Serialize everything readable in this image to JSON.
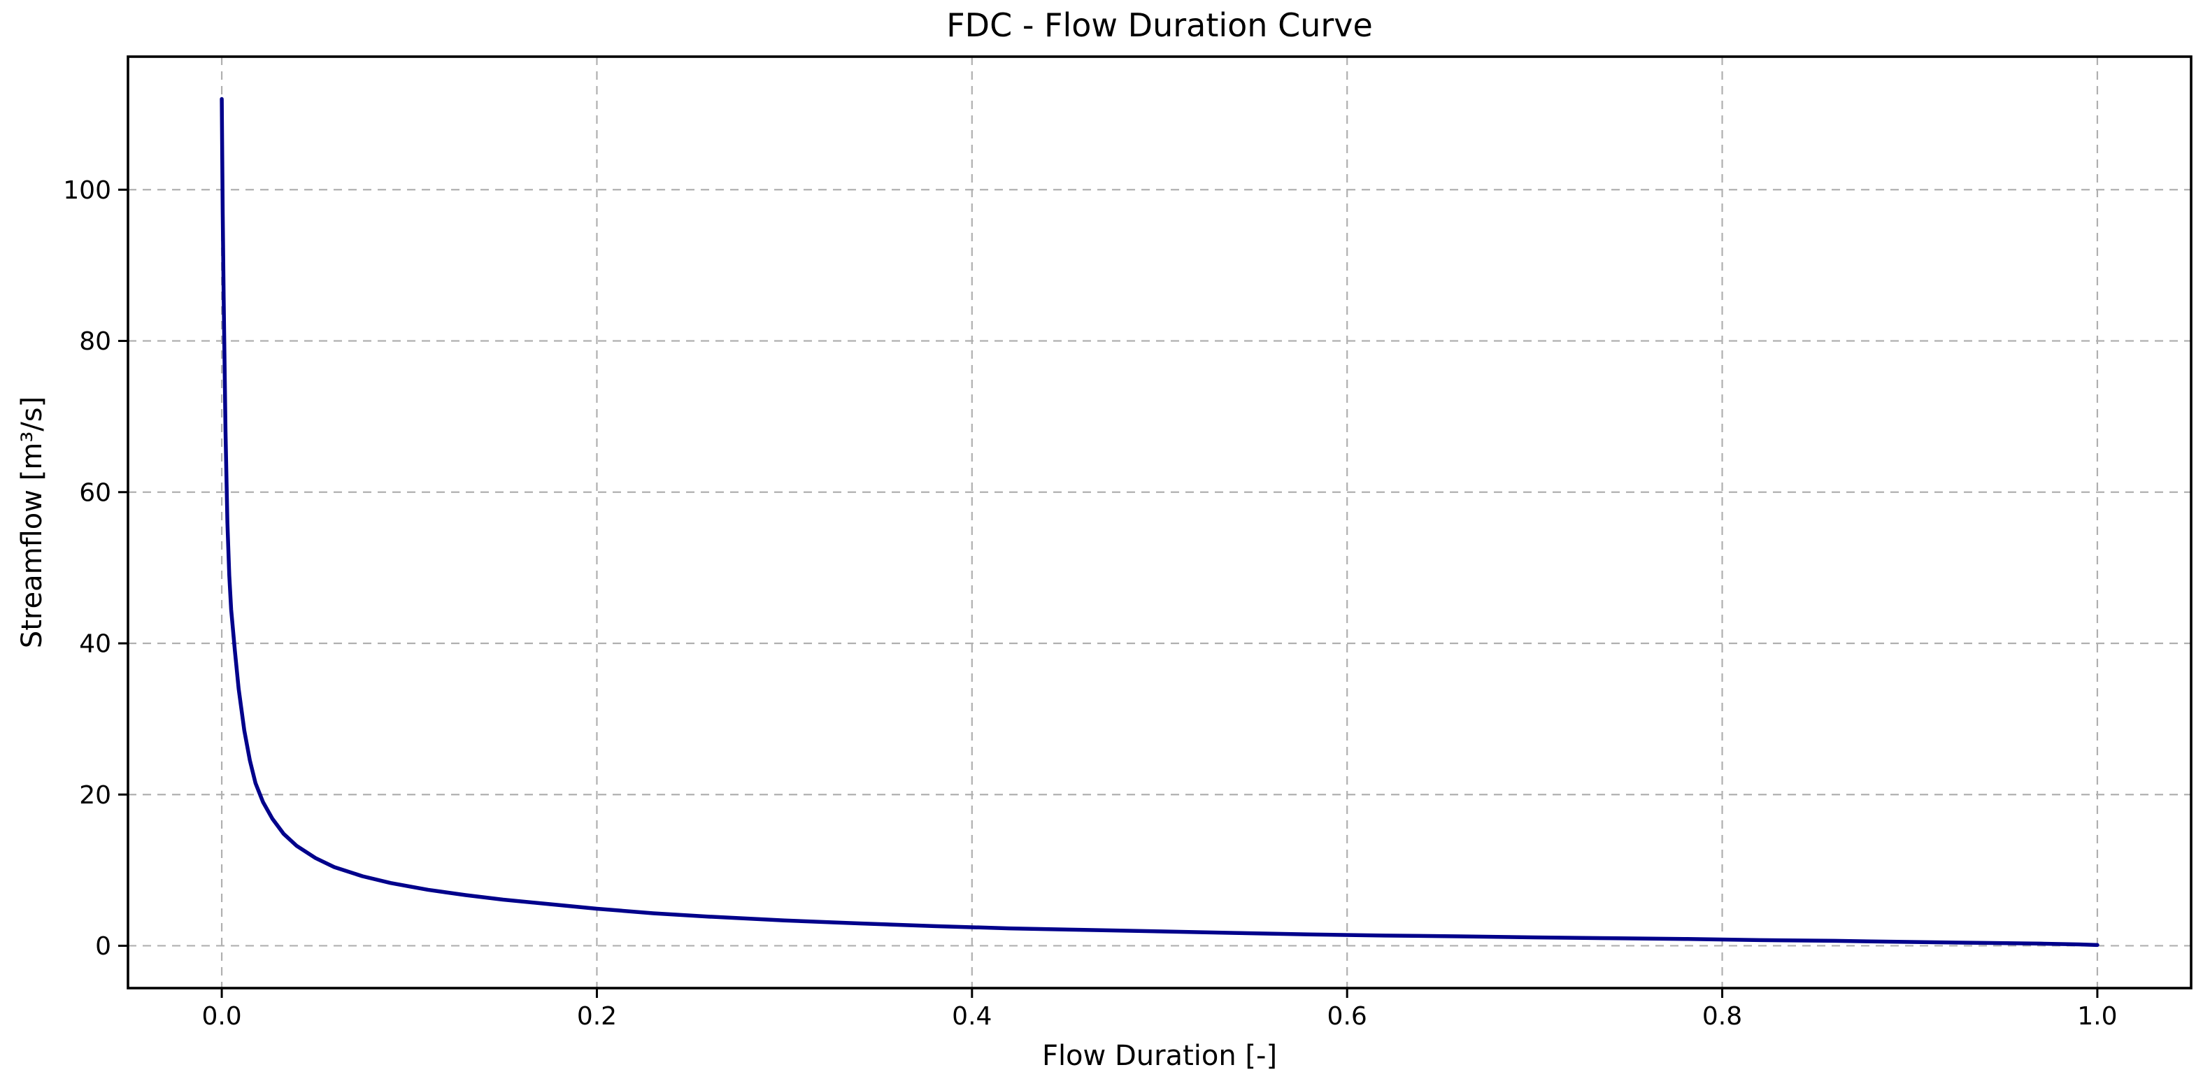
{
  "chart": {
    "title": "FDC - Flow Duration Curve",
    "xlabel": "Flow Duration [-]",
    "ylabel": "Streamflow [m³/s]",
    "colors": {
      "line": "#00008b",
      "grid": "#b0b0b0",
      "spine": "#000000",
      "text": "#000000",
      "background": "#ffffff"
    }
  },
  "chart_data": {
    "type": "line",
    "title": "FDC - Flow Duration Curve",
    "xlabel": "Flow Duration [-]",
    "ylabel": "Streamflow [m³/s]",
    "xlim": [
      -0.05,
      1.05
    ],
    "ylim": [
      -5.6,
      117.6
    ],
    "x_ticks": [
      0.0,
      0.2,
      0.4,
      0.6,
      0.8,
      1.0
    ],
    "y_ticks": [
      0,
      20,
      40,
      60,
      80,
      100
    ],
    "grid": "dashed",
    "legend": "none",
    "line_color": "#00008b",
    "series": [
      {
        "name": "FDC",
        "x": [
          0.0,
          0.0005,
          0.001,
          0.002,
          0.003,
          0.004,
          0.005,
          0.007,
          0.009,
          0.012,
          0.015,
          0.018,
          0.022,
          0.027,
          0.033,
          0.04,
          0.05,
          0.06,
          0.075,
          0.09,
          0.11,
          0.13,
          0.15,
          0.175,
          0.2,
          0.23,
          0.26,
          0.3,
          0.34,
          0.38,
          0.42,
          0.46,
          0.5,
          0.54,
          0.58,
          0.62,
          0.66,
          0.7,
          0.74,
          0.78,
          0.82,
          0.86,
          0.9,
          0.94,
          0.97,
          0.99,
          1.0
        ],
        "y": [
          112,
          97,
          86,
          68,
          56,
          49,
          44.5,
          39,
          34,
          28.5,
          24.5,
          21.5,
          19,
          16.8,
          14.8,
          13.2,
          11.6,
          10.4,
          9.2,
          8.3,
          7.4,
          6.7,
          6.1,
          5.5,
          4.9,
          4.3,
          3.85,
          3.35,
          2.95,
          2.6,
          2.3,
          2.1,
          1.9,
          1.7,
          1.5,
          1.35,
          1.25,
          1.1,
          1.0,
          0.9,
          0.75,
          0.65,
          0.5,
          0.38,
          0.28,
          0.18,
          0.1
        ]
      }
    ]
  }
}
